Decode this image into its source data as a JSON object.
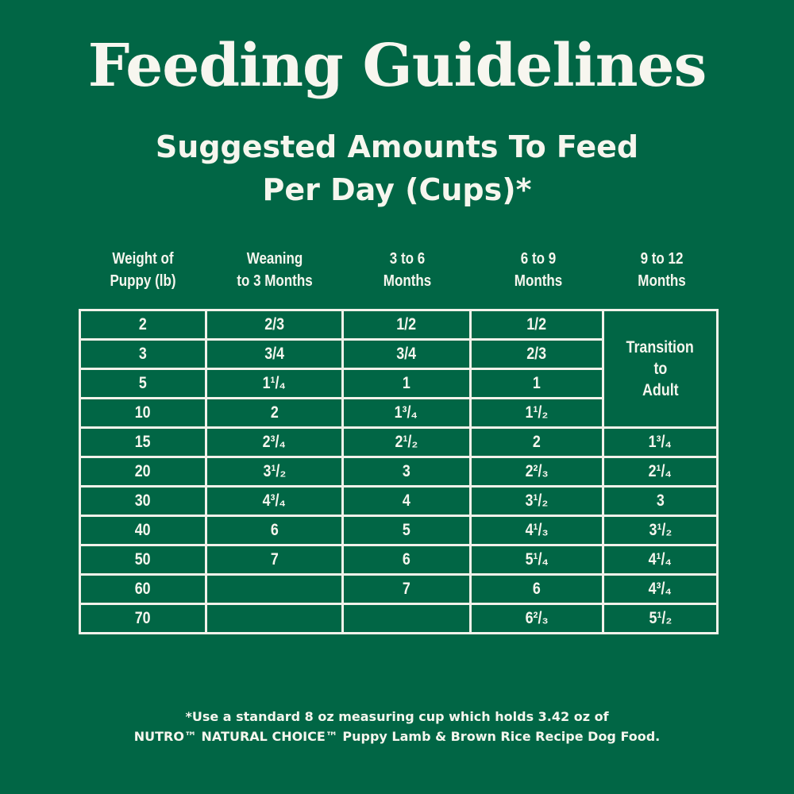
{
  "title": "Feeding Guidelines",
  "subtitle_line1": "Suggested Amounts To Feed",
  "subtitle_line2": "Per Day (Cups)*",
  "columns": [
    {
      "line1": "Weight of",
      "line2": "Puppy (lb)"
    },
    {
      "line1": "Weaning",
      "line2": "to 3 Months"
    },
    {
      "line1": "3 to 6",
      "line2": "Months"
    },
    {
      "line1": "6 to 9",
      "line2": "Months"
    },
    {
      "line1": "9 to 12",
      "line2": "Months"
    }
  ],
  "transition": {
    "line1": "Transition",
    "line2": "to",
    "line3": "Adult"
  },
  "rows": [
    [
      "2",
      "2/3",
      "1/2",
      "1/2",
      ""
    ],
    [
      "3",
      "3/4",
      "3/4",
      "2/3",
      ""
    ],
    [
      "5",
      "1¹/₄",
      "1",
      "1",
      ""
    ],
    [
      "10",
      "2",
      "1³/₄",
      "1¹/₂",
      ""
    ],
    [
      "15",
      "2³/₄",
      "2¹/₂",
      "2",
      "1³/₄"
    ],
    [
      "20",
      "3¹/₂",
      "3",
      "2²/₃",
      "2¹/₄"
    ],
    [
      "30",
      "4³/₄",
      "4",
      "3¹/₂",
      "3"
    ],
    [
      "40",
      "6",
      "5",
      "4¹/₃",
      "3¹/₂"
    ],
    [
      "50",
      "7",
      "6",
      "5¹/₄",
      "4¹/₄"
    ],
    [
      "60",
      "",
      "7",
      "6",
      "4³/₄"
    ],
    [
      "70",
      "",
      "",
      "6²/₃",
      "5¹/₂"
    ]
  ],
  "footnote_line1": "*Use a standard 8 oz measuring cup which holds 3.42 oz of",
  "footnote_line2": "NUTRO™ NATURAL CHOICE™ Puppy Lamb & Brown Rice Recipe Dog Food.",
  "colors": {
    "background": "#016645",
    "text": "#f6f6ee",
    "grid": "#f2f2ea"
  }
}
